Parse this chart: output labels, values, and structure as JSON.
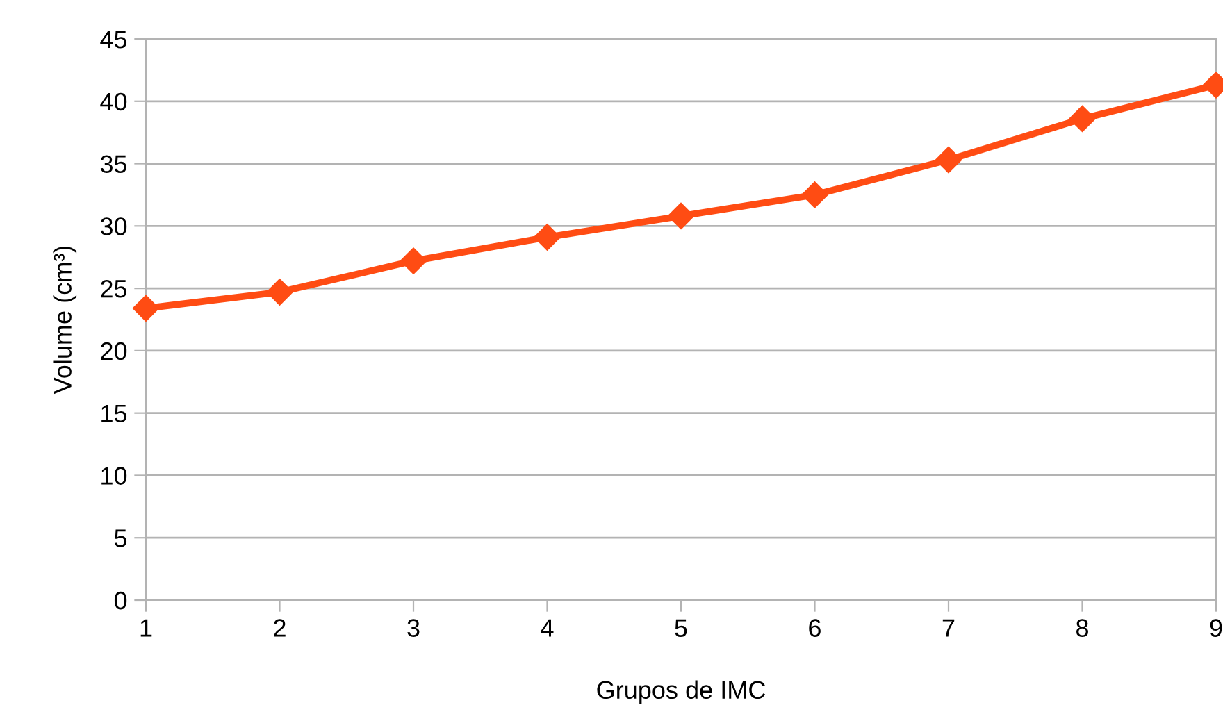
{
  "chart_data": {
    "type": "line",
    "xlabel": "Grupos de IMC",
    "ylabel": "Volume (cm³)",
    "x": [
      1,
      2,
      3,
      4,
      5,
      6,
      7,
      8,
      9
    ],
    "series": [
      {
        "color": "#ff4c13",
        "values": [
          23.4,
          24.7,
          27.2,
          29.1,
          30.8,
          32.5,
          35.3,
          38.6,
          41.3
        ]
      }
    ],
    "xlim": [
      1,
      9
    ],
    "xticks": [
      1,
      2,
      3,
      4,
      5,
      6,
      7,
      8,
      9
    ],
    "ylim": [
      0,
      45
    ],
    "yticks": [
      0,
      5,
      10,
      15,
      20,
      25,
      30,
      35,
      40,
      45
    ],
    "grid": "y",
    "marker": "diamond",
    "line_style": "solid"
  }
}
